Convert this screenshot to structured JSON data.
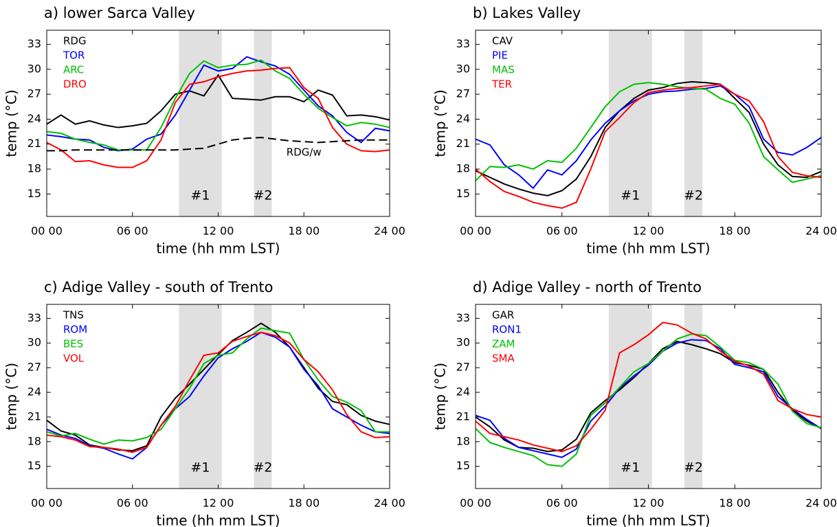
{
  "chart_data": [
    {
      "type": "line",
      "title": "a) lower Sarca Valley",
      "x_label": "time (hh mm LST)",
      "y_label": "temp (°C)",
      "x": [
        0,
        1,
        2,
        3,
        4,
        5,
        6,
        7,
        8,
        9,
        10,
        11,
        12,
        13,
        14,
        15,
        16,
        17,
        18,
        19,
        20,
        21,
        22,
        23,
        24
      ],
      "xlim": [
        0,
        24
      ],
      "xticks": [
        {
          "value": 0,
          "label": "00 00"
        },
        {
          "value": 6,
          "label": "06 00"
        },
        {
          "value": 12,
          "label": "12 00"
        },
        {
          "value": 18,
          "label": "18 00"
        },
        {
          "value": 24,
          "label": "24 00"
        }
      ],
      "ylim": [
        12.3,
        34.7
      ],
      "yticks": [
        15,
        18,
        21,
        24,
        27,
        30,
        33
      ],
      "shaded": [
        {
          "start": 9.25,
          "end": 12.25,
          "label": "#1"
        },
        {
          "start": 14.5,
          "end": 15.75,
          "label": "#2"
        }
      ],
      "series": [
        {
          "name": "RDG",
          "color": "#000000",
          "values": [
            23.4,
            24.5,
            23.4,
            23.8,
            23.3,
            23.0,
            23.2,
            23.5,
            25.0,
            27.0,
            27.4,
            26.8,
            29.3,
            26.5,
            26.4,
            26.3,
            26.7,
            26.7,
            26.1,
            27.5,
            26.9,
            24.4,
            24.5,
            24.3,
            23.9
          ]
        },
        {
          "name": "TOR",
          "color": "#0000ff",
          "values": [
            22.1,
            21.9,
            21.6,
            21.5,
            20.6,
            20.2,
            20.4,
            21.6,
            22.2,
            24.5,
            27.5,
            30.5,
            29.8,
            30.1,
            31.5,
            30.9,
            30.4,
            29.4,
            27.5,
            25.6,
            24.4,
            22.4,
            21.2,
            22.9,
            22.6
          ]
        },
        {
          "name": "ARC",
          "color": "#00c000",
          "values": [
            22.5,
            22.3,
            21.6,
            21.2,
            20.9,
            20.3,
            20.3,
            20.3,
            23.0,
            26.5,
            29.5,
            31.0,
            30.2,
            30.5,
            30.6,
            31.1,
            29.8,
            28.9,
            27.0,
            25.3,
            24.2,
            23.2,
            23.6,
            23.4,
            23.0
          ]
        },
        {
          "name": "DRO",
          "color": "#ff0000",
          "values": [
            21.2,
            20.3,
            18.9,
            19.0,
            18.5,
            18.2,
            18.2,
            19.0,
            21.5,
            26.0,
            28.2,
            28.5,
            29.1,
            29.5,
            29.8,
            29.9,
            30.1,
            30.2,
            27.8,
            26.5,
            23.0,
            21.0,
            20.2,
            20.1,
            20.3
          ]
        },
        {
          "name": "RDG/w",
          "color": "#000000",
          "dashed": true,
          "legend": false,
          "values": [
            20.2,
            20.2,
            20.3,
            20.3,
            20.3,
            20.3,
            20.3,
            20.3,
            20.3,
            20.3,
            20.4,
            20.5,
            21.0,
            21.5,
            21.7,
            21.8,
            21.6,
            21.4,
            21.3,
            21.2,
            21.3,
            21.4,
            21.5,
            21.5,
            21.5
          ]
        }
      ]
    },
    {
      "type": "line",
      "title": "b) Lakes Valley",
      "x_label": "time (hh mm LST)",
      "y_label": "temp (°C)",
      "x": [
        0,
        1,
        2,
        3,
        4,
        5,
        6,
        7,
        8,
        9,
        10,
        11,
        12,
        13,
        14,
        15,
        16,
        17,
        18,
        19,
        20,
        21,
        22,
        23,
        24
      ],
      "xlim": [
        0,
        24
      ],
      "xticks": [
        {
          "value": 0,
          "label": "00 00"
        },
        {
          "value": 6,
          "label": "06 00"
        },
        {
          "value": 12,
          "label": "12 00"
        },
        {
          "value": 18,
          "label": "18 00"
        },
        {
          "value": 24,
          "label": "24 00"
        }
      ],
      "ylim": [
        12.3,
        34.7
      ],
      "yticks": [
        15,
        18,
        21,
        24,
        27,
        30,
        33
      ],
      "shaded": [
        {
          "start": 9.25,
          "end": 12.25,
          "label": "#1"
        },
        {
          "start": 14.5,
          "end": 15.75,
          "label": "#2"
        }
      ],
      "series": [
        {
          "name": "CAV",
          "color": "#000000",
          "values": [
            17.8,
            17.0,
            16.2,
            15.6,
            15.1,
            14.8,
            15.4,
            16.8,
            19.5,
            23.0,
            25.0,
            26.5,
            27.5,
            27.8,
            28.3,
            28.5,
            28.4,
            28.2,
            26.5,
            24.8,
            21.0,
            18.5,
            17.1,
            17.0,
            17.7
          ]
        },
        {
          "name": "PIE",
          "color": "#0000ff",
          "values": [
            21.6,
            20.9,
            18.5,
            17.3,
            15.7,
            17.9,
            17.3,
            19.0,
            21.5,
            23.5,
            25.0,
            26.2,
            27.0,
            27.3,
            27.4,
            27.6,
            27.7,
            28.0,
            27.0,
            25.5,
            21.6,
            20.0,
            19.7,
            20.6,
            21.8
          ]
        },
        {
          "name": "MAS",
          "color": "#00c000",
          "values": [
            16.6,
            18.3,
            18.2,
            18.5,
            18.0,
            19.0,
            18.8,
            20.5,
            23.0,
            25.5,
            27.3,
            28.2,
            28.4,
            28.2,
            27.9,
            27.7,
            27.6,
            26.5,
            25.8,
            23.5,
            19.5,
            17.9,
            16.4,
            16.8,
            17.2
          ]
        },
        {
          "name": "TER",
          "color": "#ff0000",
          "values": [
            18.0,
            16.5,
            15.3,
            14.7,
            14.0,
            13.6,
            13.3,
            14.0,
            18.0,
            22.5,
            24.2,
            26.0,
            27.2,
            27.5,
            27.7,
            27.8,
            28.0,
            28.2,
            27.0,
            26.2,
            23.7,
            19.5,
            17.6,
            17.2,
            17.0
          ]
        }
      ]
    },
    {
      "type": "line",
      "title": "c) Adige Valley - south of Trento",
      "x_label": "time (hh mm LST)",
      "y_label": "temp (°C)",
      "x": [
        0,
        1,
        2,
        3,
        4,
        5,
        6,
        7,
        8,
        9,
        10,
        11,
        12,
        13,
        14,
        15,
        16,
        17,
        18,
        19,
        20,
        21,
        22,
        23,
        24
      ],
      "xlim": [
        0,
        24
      ],
      "xticks": [
        {
          "value": 0,
          "label": "00 00"
        },
        {
          "value": 6,
          "label": "06 00"
        },
        {
          "value": 12,
          "label": "12 00"
        },
        {
          "value": 18,
          "label": "18 00"
        },
        {
          "value": 24,
          "label": "24 00"
        }
      ],
      "ylim": [
        12.3,
        34.7
      ],
      "yticks": [
        15,
        18,
        21,
        24,
        27,
        30,
        33
      ],
      "shaded": [
        {
          "start": 9.25,
          "end": 12.25,
          "label": "#1"
        },
        {
          "start": 14.5,
          "end": 15.75,
          "label": "#2"
        }
      ],
      "series": [
        {
          "name": "TNS",
          "color": "#000000",
          "values": [
            20.6,
            19.3,
            18.8,
            17.6,
            17.3,
            17.0,
            16.9,
            17.5,
            21.0,
            23.3,
            25.0,
            26.8,
            28.6,
            30.3,
            31.3,
            32.4,
            31.3,
            29.5,
            27.0,
            24.5,
            22.9,
            22.5,
            21.2,
            20.5,
            20.1
          ]
        },
        {
          "name": "ROM",
          "color": "#0000ff",
          "values": [
            19.5,
            18.8,
            18.4,
            17.5,
            17.2,
            16.5,
            15.9,
            17.3,
            20.0,
            22.0,
            23.5,
            26.0,
            28.2,
            29.3,
            30.2,
            31.3,
            30.7,
            29.5,
            26.8,
            24.8,
            22.0,
            21.0,
            20.0,
            19.2,
            19.0
          ]
        },
        {
          "name": "BES",
          "color": "#00c000",
          "values": [
            19.2,
            18.7,
            19.0,
            18.3,
            17.7,
            18.2,
            18.1,
            18.5,
            19.5,
            22.0,
            24.5,
            27.5,
            28.5,
            28.8,
            30.5,
            31.8,
            31.5,
            31.2,
            28.0,
            25.5,
            23.5,
            22.8,
            21.8,
            19.2,
            19.2
          ]
        },
        {
          "name": "VOL",
          "color": "#ff0000",
          "values": [
            18.8,
            18.6,
            18.2,
            17.4,
            17.3,
            17.1,
            16.7,
            17.3,
            20.0,
            22.3,
            25.5,
            28.5,
            28.8,
            30.2,
            30.8,
            31.3,
            30.9,
            30.0,
            28.0,
            26.5,
            24.3,
            21.3,
            19.2,
            18.5,
            18.6
          ]
        }
      ]
    },
    {
      "type": "line",
      "title": "d) Adige Valley - north of Trento",
      "x_label": "time (hh mm LST)",
      "y_label": "temp (°C)",
      "x": [
        0,
        1,
        2,
        3,
        4,
        5,
        6,
        7,
        8,
        9,
        10,
        11,
        12,
        13,
        14,
        15,
        16,
        17,
        18,
        19,
        20,
        21,
        22,
        23,
        24
      ],
      "xlim": [
        0,
        24
      ],
      "xticks": [
        {
          "value": 0,
          "label": "00 00"
        },
        {
          "value": 6,
          "label": "06 00"
        },
        {
          "value": 12,
          "label": "12 00"
        },
        {
          "value": 18,
          "label": "18 00"
        },
        {
          "value": 24,
          "label": "24 00"
        }
      ],
      "ylim": [
        12.3,
        34.7
      ],
      "yticks": [
        15,
        18,
        21,
        24,
        27,
        30,
        33
      ],
      "shaded": [
        {
          "start": 9.25,
          "end": 12.25,
          "label": "#1"
        },
        {
          "start": 14.5,
          "end": 15.75,
          "label": "#2"
        }
      ],
      "series": [
        {
          "name": "GAR",
          "color": "#000000",
          "values": [
            21.0,
            19.8,
            18.2,
            17.3,
            17.2,
            16.8,
            17.0,
            18.3,
            21.5,
            23.0,
            24.3,
            25.8,
            27.5,
            29.3,
            30.2,
            29.8,
            29.3,
            28.7,
            27.6,
            27.3,
            26.8,
            24.0,
            21.8,
            20.5,
            19.6
          ]
        },
        {
          "name": "RON1",
          "color": "#0000ff",
          "values": [
            21.2,
            20.6,
            18.4,
            17.3,
            16.9,
            16.5,
            16.1,
            17.1,
            20.5,
            22.3,
            24.5,
            26.0,
            27.3,
            29.0,
            30.0,
            30.4,
            30.3,
            29.3,
            27.4,
            27.0,
            26.5,
            23.5,
            22.0,
            20.7,
            19.6
          ]
        },
        {
          "name": "ZAM",
          "color": "#00c000",
          "values": [
            19.6,
            17.9,
            17.3,
            16.8,
            16.3,
            15.2,
            15.0,
            16.5,
            21.2,
            22.7,
            24.6,
            26.5,
            27.5,
            29.0,
            30.5,
            31.1,
            30.9,
            29.5,
            27.9,
            27.6,
            26.8,
            25.0,
            21.7,
            20.2,
            19.7
          ]
        },
        {
          "name": "SMA",
          "color": "#ff0000",
          "values": [
            20.5,
            19.0,
            18.6,
            18.2,
            17.6,
            17.2,
            16.8,
            17.5,
            19.5,
            21.8,
            28.8,
            29.8,
            31.0,
            32.5,
            32.2,
            31.2,
            30.5,
            29.0,
            27.8,
            27.2,
            26.2,
            23.0,
            22.0,
            21.3,
            21.0
          ]
        }
      ]
    }
  ]
}
